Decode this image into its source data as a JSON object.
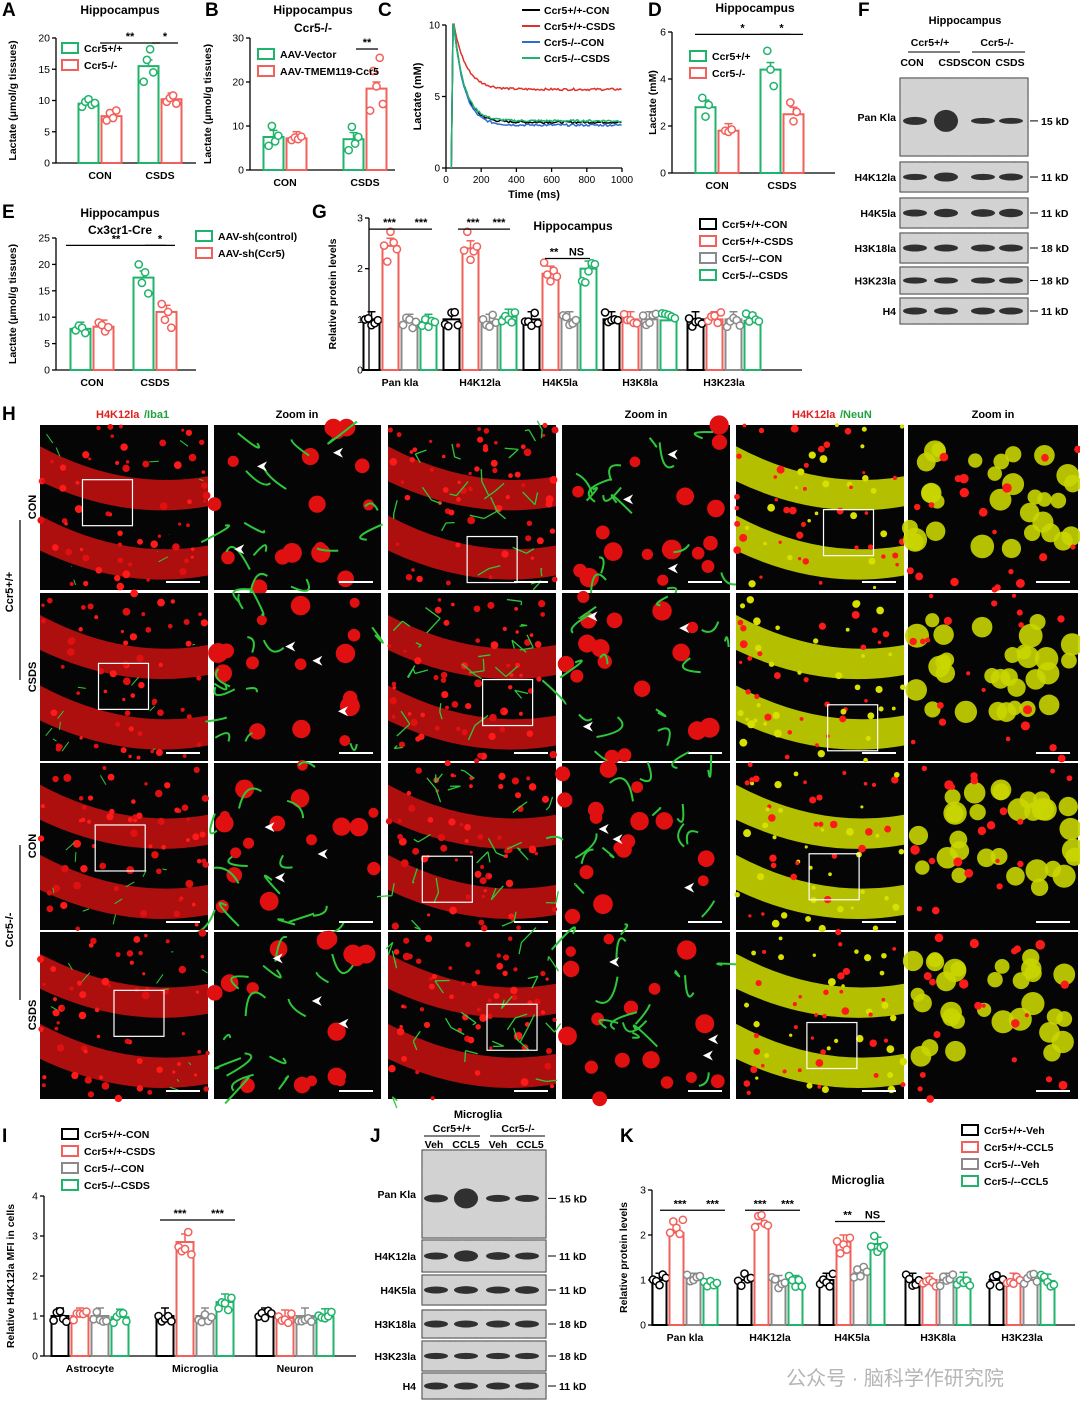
{
  "colors": {
    "green": "#1fb36b",
    "red": "#f2605b",
    "gray": "#8a8a8a",
    "black": "#000000",
    "blue": "#2f6bd6",
    "blot_bg": "#d9d9d9",
    "fluor_red": "#ff1a1a",
    "fluor_green": "#2ec73a"
  },
  "panels": {
    "A": "A",
    "B": "B",
    "C": "C",
    "D": "D",
    "E": "E",
    "F": "F",
    "G": "G",
    "H": "H",
    "I": "I",
    "J": "J",
    "K": "K"
  },
  "texts": {
    "hippocampus": "Hippocampus",
    "ccr5ko": "Ccr5-/-",
    "cx3cr1": "Cx3cr1-Cre",
    "microglia": "Microglia",
    "lactate_axis": "Lactate (μmol/g tissues)",
    "lactate_mM": "Lactate (mM)",
    "time_ms": "Time (ms)",
    "rel_protein": "Relative protein levels",
    "rel_mfi": "Relative H4K12la MFI in cells",
    "zoom": "Zoom in",
    "h4k12la": "H4K12la",
    "iba1": "/Iba1",
    "neun": "/NeuN",
    "ccr5wt": "Ccr5+/+",
    "con": "CON",
    "csds": "CSDS",
    "veh": "Veh",
    "ccl5": "CCL5",
    "watermark": "公众号 · 脑科学作研究院"
  },
  "legends": {
    "A": [
      "Ccr5+/+",
      "Ccr5-/-"
    ],
    "B": [
      "AAV-Vector",
      "AAV-TMEM119-Ccr5"
    ],
    "C": [
      "Ccr5+/+-CON",
      "Ccr5+/+-CSDS",
      "Ccr5-/--CON",
      "Ccr5-/--CSDS"
    ],
    "D": [
      "Ccr5+/+",
      "Ccr5-/-"
    ],
    "E": [
      "AAV-sh(control)",
      "AAV-sh(Ccr5)"
    ],
    "G": [
      "Ccr5+/+-CON",
      "Ccr5+/+-CSDS",
      "Ccr5-/--CON",
      "Ccr5-/--CSDS"
    ],
    "I": [
      "Ccr5+/+-CON",
      "Ccr5+/+-CSDS",
      "Ccr5-/--CON",
      "Ccr5-/--CSDS"
    ],
    "K": [
      "Ccr5+/+-Veh",
      "Ccr5+/+-CCL5",
      "Ccr5-/--Veh",
      "Ccr5-/--CCL5"
    ]
  },
  "blots": {
    "F_rows": [
      "Pan Kla",
      "H4K12la",
      "H4K5la",
      "H3K18la",
      "H3K23la",
      "H4"
    ],
    "F_sizes": [
      "15 kD",
      "11 kD",
      "11 kD",
      "18 kD",
      "18 kD",
      "11 kD"
    ],
    "J_rows": [
      "Pan Kla",
      "H4K12la",
      "H4K5la",
      "H3K18la",
      "H3K23la",
      "H4"
    ],
    "J_sizes": [
      "15 kD",
      "11 kD",
      "11 kD",
      "18 kD",
      "18 kD",
      "11 kD"
    ]
  },
  "chart_data": [
    {
      "panel": "A",
      "type": "bar",
      "title": "Hippocampus",
      "categories": [
        "CON",
        "CSDS"
      ],
      "ylabel": "Lactate (μmol/g tissues)",
      "ylim": [
        0,
        20
      ],
      "yticks": [
        0,
        5,
        10,
        15,
        20
      ],
      "series": [
        {
          "name": "Ccr5+/+",
          "color": "#1fb36b",
          "values": [
            9.5,
            15.5
          ]
        },
        {
          "name": "Ccr5-/-",
          "color": "#f2605b",
          "values": [
            7.5,
            10.2
          ]
        }
      ],
      "points": [
        [
          [
            9.0,
            9.8,
            10.2,
            9.3,
            9.6
          ],
          [
            13.0,
            16.5,
            18.2,
            14.5
          ]
        ],
        [
          [
            6.8,
            8.0,
            7.2,
            8.4
          ],
          [
            9.8,
            10.4,
            10.8,
            9.5
          ]
        ]
      ],
      "annotations": [
        "**",
        "*"
      ]
    },
    {
      "panel": "B",
      "type": "bar",
      "title": "Hippocampus",
      "categories": [
        "CON",
        "CSDS"
      ],
      "ylabel": "Lactate (μmol/g tissues)",
      "ylim": [
        0,
        30
      ],
      "yticks": [
        0,
        10,
        20,
        30
      ],
      "series": [
        {
          "name": "AAV-Vector",
          "color": "#1fb36b",
          "values": [
            7.5,
            7.0
          ]
        },
        {
          "name": "AAV-TMEM119-Ccr5",
          "color": "#f2605b",
          "values": [
            7.2,
            18.5
          ]
        }
      ],
      "points": [
        [
          [
            5.5,
            10.0,
            6.5,
            7.8
          ],
          [
            4.5,
            9.8,
            6.0,
            7.5
          ]
        ],
        [
          [
            6.8,
            7.4,
            7.0,
            7.6
          ],
          [
            13.5,
            22.5,
            19.0,
            25.5,
            15.0
          ]
        ]
      ],
      "annotations": [
        "**"
      ]
    },
    {
      "panel": "C",
      "type": "line",
      "xlabel": "Time (ms)",
      "ylabel": "Lactate (mM)",
      "xlim": [
        0,
        1000
      ],
      "ylim": [
        0,
        10
      ],
      "xticks": [
        0,
        200,
        400,
        600,
        800,
        1000
      ],
      "yticks": [
        0,
        5,
        10
      ],
      "series": [
        {
          "name": "Ccr5+/+-CON",
          "color": "#000000",
          "plateau": 3.2,
          "tau": 60
        },
        {
          "name": "Ccr5+/+-CSDS",
          "color": "#e0302b",
          "plateau": 5.5,
          "tau": 70
        },
        {
          "name": "Ccr5-/--CON",
          "color": "#2f6bd6",
          "plateau": 3.0,
          "tau": 60
        },
        {
          "name": "Ccr5-/--CSDS",
          "color": "#1fb36b",
          "plateau": 3.3,
          "tau": 60
        }
      ]
    },
    {
      "panel": "D",
      "type": "bar",
      "title": "Hippocampus",
      "categories": [
        "CON",
        "CSDS"
      ],
      "ylabel": "Lactate (mM)",
      "ylim": [
        0,
        6
      ],
      "yticks": [
        0,
        2,
        4,
        6
      ],
      "series": [
        {
          "name": "Ccr5+/+",
          "color": "#1fb36b",
          "values": [
            2.8,
            4.4
          ]
        },
        {
          "name": "Ccr5-/-",
          "color": "#f2605b",
          "values": [
            1.8,
            2.5
          ]
        }
      ],
      "points": [
        [
          [
            3.2,
            2.4,
            2.9
          ],
          [
            5.2,
            4.4,
            3.7
          ]
        ],
        [
          [
            1.8,
            1.75,
            1.85
          ],
          [
            3.0,
            2.2,
            2.6
          ]
        ]
      ],
      "annotations": [
        "*",
        "*"
      ]
    },
    {
      "panel": "E",
      "type": "bar",
      "title": "Hippocampus",
      "subtitle": "Cx3cr1-Cre",
      "categories": [
        "CON",
        "CSDS"
      ],
      "ylabel": "Lactate (μmol/g tissues)",
      "ylim": [
        0,
        25
      ],
      "yticks": [
        0,
        5,
        10,
        15,
        20,
        25
      ],
      "series": [
        {
          "name": "AAV-sh(control)",
          "color": "#1fb36b",
          "values": [
            7.8,
            17.5
          ]
        },
        {
          "name": "AAV-sh(Ccr5)",
          "color": "#f2605b",
          "values": [
            8.2,
            11.0
          ]
        }
      ],
      "points": [
        [
          [
            7.5,
            8.4,
            8.0,
            7.0
          ],
          [
            20.0,
            16.5,
            18.5,
            14.5
          ]
        ],
        [
          [
            9.0,
            8.5,
            7.3,
            8.1
          ],
          [
            12.5,
            9.5,
            11.0,
            8.0
          ]
        ]
      ],
      "annotations": [
        "**",
        "*"
      ]
    },
    {
      "panel": "G",
      "type": "bar",
      "title": "Hippocampus",
      "categories": [
        "Pan kla",
        "H4K12la",
        "H4K5la",
        "H3K8la",
        "H3K23la"
      ],
      "ylabel": "Relative protein levels",
      "ylim": [
        0,
        3
      ],
      "yticks": [
        0,
        1,
        2,
        3
      ],
      "series": [
        {
          "name": "Ccr5+/+-CON",
          "color": "#000000",
          "values": [
            1.0,
            1.0,
            1.0,
            1.0,
            1.0
          ]
        },
        {
          "name": "Ccr5+/+-CSDS",
          "color": "#f2605b",
          "values": [
            2.45,
            2.4,
            1.9,
            1.0,
            1.0
          ]
        },
        {
          "name": "Ccr5-/--CON",
          "color": "#8a8a8a",
          "values": [
            0.95,
            0.95,
            1.0,
            1.0,
            1.0
          ]
        },
        {
          "name": "Ccr5-/--CSDS",
          "color": "#1fb36b",
          "values": [
            0.95,
            1.05,
            2.0,
            0.98,
            0.97
          ]
        }
      ],
      "annotations": [
        "***",
        "***",
        "***",
        "***",
        "**",
        "NS"
      ]
    },
    {
      "panel": "I",
      "type": "bar",
      "categories": [
        "Astrocyte",
        "Microglia",
        "Neuron"
      ],
      "ylabel": "Relative H4K12la MFI in cells",
      "ylim": [
        0,
        4
      ],
      "yticks": [
        0,
        1,
        2,
        3,
        4
      ],
      "series": [
        {
          "name": "Ccr5+/+-CON",
          "color": "#000000",
          "values": [
            1.0,
            1.0,
            1.0
          ]
        },
        {
          "name": "Ccr5+/+-CSDS",
          "color": "#f2605b",
          "values": [
            1.0,
            2.85,
            0.95
          ]
        },
        {
          "name": "Ccr5-/--CON",
          "color": "#8a8a8a",
          "values": [
            1.0,
            1.0,
            1.0
          ]
        },
        {
          "name": "Ccr5-/--CSDS",
          "color": "#1fb36b",
          "values": [
            0.97,
            1.35,
            0.98
          ]
        }
      ],
      "annotations": [
        "***",
        "***"
      ]
    },
    {
      "panel": "K",
      "type": "bar",
      "title": "Microglia",
      "categories": [
        "Pan kla",
        "H4K12la",
        "H4K5la",
        "H3K8la",
        "H3K23la"
      ],
      "ylabel": "Relative protein levels",
      "ylim": [
        0,
        3
      ],
      "yticks": [
        0,
        1,
        2,
        3
      ],
      "series": [
        {
          "name": "Ccr5+/+-Veh",
          "color": "#000000",
          "values": [
            1.0,
            1.0,
            1.0,
            1.0,
            1.0
          ]
        },
        {
          "name": "Ccr5+/+-CCL5",
          "color": "#f2605b",
          "values": [
            2.05,
            2.25,
            1.85,
            1.0,
            1.0
          ]
        },
        {
          "name": "Ccr5-/--Veh",
          "color": "#8a8a8a",
          "values": [
            1.0,
            0.95,
            1.15,
            1.0,
            1.0
          ]
        },
        {
          "name": "Ccr5-/--CCL5",
          "color": "#1fb36b",
          "values": [
            0.85,
            0.95,
            1.8,
            1.02,
            0.98
          ]
        }
      ],
      "annotations": [
        "***",
        "***",
        "***",
        "***",
        "**",
        "NS"
      ]
    }
  ]
}
